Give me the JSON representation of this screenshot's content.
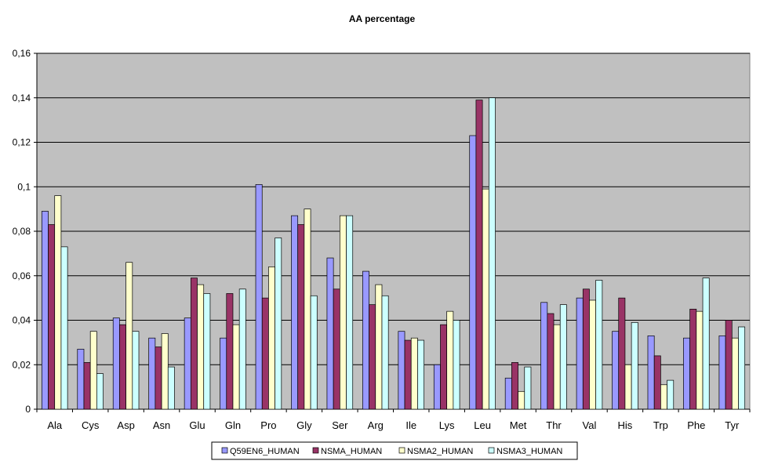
{
  "chart_data": {
    "type": "bar",
    "title": "AA percentage",
    "xlabel": "",
    "ylabel": "",
    "ylim": [
      0,
      0.16
    ],
    "yticks": [
      "0",
      "0,02",
      "0,04",
      "0,06",
      "0,08",
      "0,1",
      "0,12",
      "0,14",
      "0,16"
    ],
    "ytick_values": [
      0,
      0.02,
      0.04,
      0.06,
      0.08,
      0.1,
      0.12,
      0.14,
      0.16
    ],
    "grid": true,
    "legend_position": "bottom",
    "plot_background": "#c0c0c0",
    "categories": [
      "Ala",
      "Cys",
      "Asp",
      "Asn",
      "Glu",
      "Gln",
      "Pro",
      "Gly",
      "Ser",
      "Arg",
      "Ile",
      "Lys",
      "Leu",
      "Met",
      "Thr",
      "Val",
      "His",
      "Trp",
      "Phe",
      "Tyr"
    ],
    "series": [
      {
        "name": "Q59EN6_HUMAN",
        "color": "#9999ff",
        "values": [
          0.089,
          0.027,
          0.041,
          0.032,
          0.041,
          0.032,
          0.101,
          0.087,
          0.068,
          0.062,
          0.035,
          0.02,
          0.123,
          0.014,
          0.048,
          0.05,
          0.035,
          0.033,
          0.032,
          0.033
        ]
      },
      {
        "name": "NSMA_HUMAN",
        "color": "#993366",
        "values": [
          0.083,
          0.021,
          0.038,
          0.028,
          0.059,
          0.052,
          0.05,
          0.083,
          0.054,
          0.047,
          0.031,
          0.038,
          0.139,
          0.021,
          0.043,
          0.054,
          0.05,
          0.024,
          0.045,
          0.04
        ]
      },
      {
        "name": "NSMA2_HUMAN",
        "color": "#ffffcc",
        "values": [
          0.096,
          0.035,
          0.066,
          0.034,
          0.056,
          0.038,
          0.064,
          0.09,
          0.087,
          0.056,
          0.032,
          0.044,
          0.099,
          0.008,
          0.038,
          0.049,
          0.02,
          0.011,
          0.044,
          0.032
        ]
      },
      {
        "name": "NSMA3_HUMAN",
        "color": "#ccffff",
        "values": [
          0.073,
          0.016,
          0.035,
          0.019,
          0.052,
          0.054,
          0.077,
          0.051,
          0.087,
          0.051,
          0.031,
          0.04,
          0.14,
          0.019,
          0.047,
          0.058,
          0.039,
          0.013,
          0.059,
          0.037
        ]
      }
    ]
  }
}
